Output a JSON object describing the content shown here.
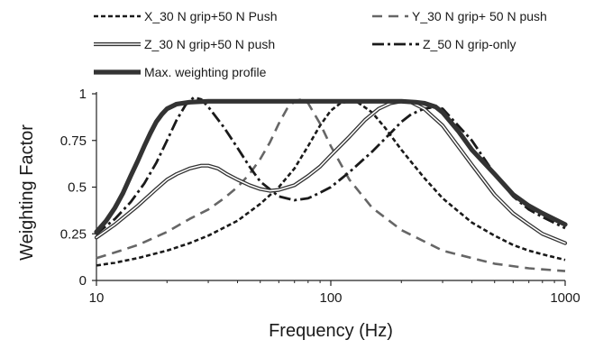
{
  "chart_data": {
    "type": "line",
    "title": "",
    "xlabel": "Frequency (Hz)",
    "ylabel": "Weighting Factor",
    "xscale": "log",
    "xlim": [
      10,
      1000
    ],
    "ylim": [
      0,
      1
    ],
    "grid": false,
    "legend_position": "top",
    "x_ticks": [
      {
        "value": 10,
        "label": "10"
      },
      {
        "value": 100,
        "label": "100"
      },
      {
        "value": 1000,
        "label": "1000"
      }
    ],
    "y_ticks": [
      {
        "value": 0,
        "label": "0"
      },
      {
        "value": 0.25,
        "label": "0.25"
      },
      {
        "value": 0.5,
        "label": "0.5"
      },
      {
        "value": 0.75,
        "label": "0.75"
      },
      {
        "value": 1,
        "label": "1"
      }
    ],
    "series": [
      {
        "name": "X_30 N grip+50 N Push",
        "style": "dashed",
        "color": "#1a1a1a",
        "points": [
          [
            10,
            0.08
          ],
          [
            12,
            0.095
          ],
          [
            15,
            0.12
          ],
          [
            20,
            0.16
          ],
          [
            25,
            0.2
          ],
          [
            30,
            0.24
          ],
          [
            40,
            0.32
          ],
          [
            50,
            0.41
          ],
          [
            60,
            0.5
          ],
          [
            70,
            0.6
          ],
          [
            80,
            0.72
          ],
          [
            90,
            0.83
          ],
          [
            100,
            0.91
          ],
          [
            110,
            0.95
          ],
          [
            120,
            0.96
          ],
          [
            130,
            0.955
          ],
          [
            150,
            0.9
          ],
          [
            170,
            0.82
          ],
          [
            200,
            0.7
          ],
          [
            250,
            0.55
          ],
          [
            300,
            0.44
          ],
          [
            400,
            0.31
          ],
          [
            500,
            0.24
          ],
          [
            600,
            0.19
          ],
          [
            700,
            0.16
          ],
          [
            800,
            0.14
          ],
          [
            1000,
            0.11
          ]
        ]
      },
      {
        "name": "Y_30 N grip+ 50 N push",
        "style": "long-dashed",
        "color": "#666666",
        "points": [
          [
            10,
            0.12
          ],
          [
            12,
            0.15
          ],
          [
            15,
            0.19
          ],
          [
            20,
            0.26
          ],
          [
            25,
            0.33
          ],
          [
            30,
            0.38
          ],
          [
            35,
            0.44
          ],
          [
            40,
            0.5
          ],
          [
            45,
            0.57
          ],
          [
            50,
            0.65
          ],
          [
            55,
            0.74
          ],
          [
            60,
            0.84
          ],
          [
            65,
            0.92
          ],
          [
            70,
            0.96
          ],
          [
            75,
            0.97
          ],
          [
            80,
            0.95
          ],
          [
            90,
            0.84
          ],
          [
            100,
            0.72
          ],
          [
            120,
            0.54
          ],
          [
            150,
            0.39
          ],
          [
            200,
            0.27
          ],
          [
            300,
            0.16
          ],
          [
            400,
            0.12
          ],
          [
            500,
            0.09
          ],
          [
            700,
            0.065
          ],
          [
            1000,
            0.05
          ]
        ]
      },
      {
        "name": "Z_30 N grip+50 N push",
        "style": "double",
        "color": "#444444",
        "points": [
          [
            10,
            0.23
          ],
          [
            12,
            0.3
          ],
          [
            15,
            0.4
          ],
          [
            18,
            0.49
          ],
          [
            20,
            0.54
          ],
          [
            22,
            0.57
          ],
          [
            25,
            0.6
          ],
          [
            28,
            0.615
          ],
          [
            30,
            0.615
          ],
          [
            33,
            0.6
          ],
          [
            36,
            0.57
          ],
          [
            40,
            0.54
          ],
          [
            45,
            0.51
          ],
          [
            50,
            0.49
          ],
          [
            55,
            0.48
          ],
          [
            60,
            0.485
          ],
          [
            70,
            0.51
          ],
          [
            80,
            0.56
          ],
          [
            90,
            0.61
          ],
          [
            100,
            0.67
          ],
          [
            120,
            0.77
          ],
          [
            140,
            0.86
          ],
          [
            160,
            0.92
          ],
          [
            180,
            0.95
          ],
          [
            200,
            0.96
          ],
          [
            220,
            0.955
          ],
          [
            250,
            0.92
          ],
          [
            300,
            0.83
          ],
          [
            400,
            0.62
          ],
          [
            500,
            0.46
          ],
          [
            600,
            0.36
          ],
          [
            700,
            0.3
          ],
          [
            800,
            0.25
          ],
          [
            1000,
            0.2
          ]
        ]
      },
      {
        "name": "Z_50 N grip-only",
        "style": "dash-dot",
        "color": "#1a1a1a",
        "points": [
          [
            10,
            0.25
          ],
          [
            12,
            0.33
          ],
          [
            14,
            0.42
          ],
          [
            16,
            0.52
          ],
          [
            18,
            0.63
          ],
          [
            20,
            0.75
          ],
          [
            22,
            0.86
          ],
          [
            24,
            0.94
          ],
          [
            26,
            0.98
          ],
          [
            28,
            0.97
          ],
          [
            30,
            0.93
          ],
          [
            35,
            0.82
          ],
          [
            40,
            0.71
          ],
          [
            45,
            0.61
          ],
          [
            50,
            0.53
          ],
          [
            60,
            0.45
          ],
          [
            70,
            0.43
          ],
          [
            80,
            0.44
          ],
          [
            90,
            0.47
          ],
          [
            100,
            0.5
          ],
          [
            120,
            0.58
          ],
          [
            150,
            0.69
          ],
          [
            180,
            0.79
          ],
          [
            200,
            0.85
          ],
          [
            220,
            0.89
          ],
          [
            250,
            0.92
          ],
          [
            280,
            0.93
          ],
          [
            300,
            0.92
          ],
          [
            400,
            0.75
          ],
          [
            500,
            0.57
          ],
          [
            600,
            0.45
          ],
          [
            700,
            0.38
          ],
          [
            800,
            0.34
          ],
          [
            1000,
            0.28
          ]
        ]
      },
      {
        "name": "Max. weighting profile",
        "style": "thick",
        "color": "#333333",
        "points": [
          [
            10,
            0.26
          ],
          [
            11,
            0.32
          ],
          [
            12,
            0.39
          ],
          [
            13,
            0.47
          ],
          [
            14,
            0.56
          ],
          [
            15,
            0.64
          ],
          [
            16,
            0.72
          ],
          [
            17,
            0.79
          ],
          [
            18,
            0.85
          ],
          [
            19,
            0.89
          ],
          [
            20,
            0.92
          ],
          [
            22,
            0.945
          ],
          [
            25,
            0.955
          ],
          [
            30,
            0.96
          ],
          [
            50,
            0.96
          ],
          [
            100,
            0.96
          ],
          [
            200,
            0.96
          ],
          [
            230,
            0.955
          ],
          [
            250,
            0.95
          ],
          [
            280,
            0.93
          ],
          [
            300,
            0.9
          ],
          [
            350,
            0.8
          ],
          [
            400,
            0.7
          ],
          [
            500,
            0.57
          ],
          [
            600,
            0.46
          ],
          [
            700,
            0.4
          ],
          [
            800,
            0.36
          ],
          [
            1000,
            0.3
          ]
        ]
      }
    ]
  }
}
